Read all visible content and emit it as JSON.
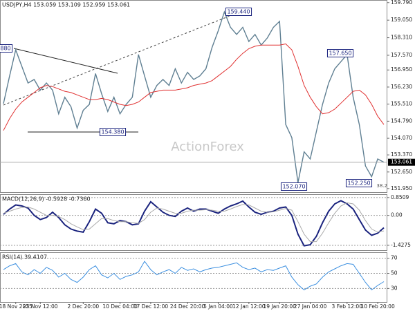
{
  "chart_data": [
    {
      "type": "line",
      "title": "USDJPY,H4 153.059 153.109 152.959 153.061",
      "watermark": "ActionForex",
      "series": [
        {
          "color": "#5f7f92",
          "values": [
            155.53,
            156.7,
            157.8,
            157.1,
            156.4,
            156.55,
            156.1,
            156.4,
            156.1,
            155.1,
            155.8,
            155.4,
            154.5,
            155.25,
            155.5,
            156.8,
            155.95,
            155.2,
            155.8,
            155.1,
            155.5,
            155.8,
            157.6,
            156.7,
            155.8,
            156.3,
            156.55,
            156.3,
            157.0,
            156.4,
            156.85,
            156.55,
            156.7,
            157.0,
            157.9,
            158.6,
            159.4,
            158.75,
            158.45,
            158.75,
            158.15,
            158.45,
            158.0,
            158.3,
            158.75,
            159.0,
            154.65,
            154.1,
            152.2,
            153.5,
            153.2,
            154.35,
            155.5,
            156.4,
            157.0,
            157.3,
            157.6,
            155.8,
            154.65,
            152.9,
            152.45,
            153.2,
            153.06
          ]
        },
        {
          "color": "#e03030",
          "values": [
            154.4,
            154.9,
            155.3,
            155.6,
            155.8,
            156.0,
            156.2,
            156.3,
            156.25,
            156.15,
            156.05,
            156.0,
            155.9,
            155.8,
            155.7,
            155.7,
            155.75,
            155.7,
            155.6,
            155.5,
            155.45,
            155.5,
            155.6,
            155.8,
            156.0,
            156.05,
            156.1,
            156.1,
            156.1,
            156.15,
            156.2,
            156.3,
            156.35,
            156.4,
            156.5,
            156.7,
            156.9,
            157.1,
            157.4,
            157.65,
            157.85,
            157.95,
            158.0,
            158.0,
            158.0,
            158.0,
            158.05,
            157.8,
            157.1,
            156.3,
            155.8,
            155.4,
            155.1,
            155.15,
            155.3,
            155.55,
            155.8,
            156.05,
            156.1,
            155.9,
            155.5,
            155.0,
            154.65
          ]
        }
      ],
      "ylim": [
        151.8,
        159.9
      ],
      "yticks": [
        {
          "value": 159.79,
          "label": "159.790"
        },
        {
          "value": 159.05,
          "label": "159.050"
        },
        {
          "value": 158.31,
          "label": "158.310"
        },
        {
          "value": 157.57,
          "label": "157.570"
        },
        {
          "value": 156.95,
          "label": "156.950"
        },
        {
          "value": 156.23,
          "label": "156.230"
        },
        {
          "value": 155.51,
          "label": "155.510"
        },
        {
          "value": 154.79,
          "label": "154.790"
        },
        {
          "value": 154.07,
          "label": "154.070"
        },
        {
          "value": 153.37,
          "label": "153.370"
        },
        {
          "value": 152.65,
          "label": "152.650"
        },
        {
          "value": 151.95,
          "label": "151.950"
        }
      ],
      "last_price": 153.061,
      "annotations": [
        "159.440",
        "157.650",
        "154.380",
        "152.070",
        "152.250",
        "880",
        "38.2"
      ]
    },
    {
      "type": "line",
      "title": "MACD(12,26,9) -0.5928 -0.7360",
      "series": [
        {
          "color": "#1a237e",
          "values": [
            0.05,
            0.3,
            0.5,
            0.45,
            0.35,
            0.0,
            -0.2,
            -0.1,
            0.15,
            -0.1,
            -0.45,
            -0.65,
            -0.75,
            -0.8,
            -0.3,
            0.3,
            0.1,
            -0.35,
            -0.4,
            -0.25,
            -0.3,
            -0.45,
            -0.4,
            0.2,
            0.65,
            0.4,
            0.15,
            0.0,
            -0.05,
            0.2,
            0.35,
            0.2,
            0.3,
            0.3,
            0.2,
            0.1,
            0.3,
            0.45,
            0.55,
            0.68,
            0.4,
            0.15,
            0.05,
            0.15,
            0.2,
            0.35,
            0.4,
            0.0,
            -0.9,
            -1.45,
            -1.4,
            -1.0,
            -0.35,
            0.2,
            0.55,
            0.7,
            0.55,
            0.3,
            -0.2,
            -0.7,
            -0.95,
            -0.85,
            -0.59
          ]
        },
        {
          "color": "#aaaaaa",
          "values": [
            0.1,
            0.2,
            0.3,
            0.38,
            0.4,
            0.3,
            0.15,
            0.0,
            0.0,
            -0.05,
            -0.2,
            -0.4,
            -0.55,
            -0.68,
            -0.65,
            -0.4,
            -0.15,
            -0.15,
            -0.25,
            -0.3,
            -0.3,
            -0.35,
            -0.38,
            -0.2,
            0.15,
            0.35,
            0.3,
            0.2,
            0.1,
            0.1,
            0.2,
            0.25,
            0.25,
            0.27,
            0.25,
            0.2,
            0.2,
            0.3,
            0.42,
            0.52,
            0.5,
            0.35,
            0.2,
            0.15,
            0.17,
            0.25,
            0.33,
            0.25,
            -0.3,
            -0.9,
            -1.25,
            -1.25,
            -0.85,
            -0.35,
            0.1,
            0.45,
            0.6,
            0.55,
            0.25,
            -0.25,
            -0.65,
            -0.8,
            -0.74
          ]
        }
      ],
      "ylim": [
        -1.66,
        1.01
      ],
      "yticks": [
        0.8509,
        {
          "value": 0,
          "label": "0.00"
        },
        -1.4275
      ],
      "grid": true
    },
    {
      "type": "line",
      "title": "RSI(14) 39.4107",
      "categories": [
        null,
        null,
        "18 Nov 2025",
        null,
        null,
        null,
        "25 Nov 12:00",
        null,
        null,
        null,
        null,
        null,
        null,
        "2 Dec 20:00",
        null,
        null,
        null,
        null,
        null,
        "10 Dec 04:00",
        null,
        null,
        null,
        null,
        "17 Dec 12:00",
        null,
        null,
        null,
        null,
        null,
        "24 Dec 20:00",
        null,
        null,
        null,
        null,
        "5 Jan 04:00",
        null,
        null,
        null,
        null,
        "12 Jan 12:00",
        null,
        null,
        null,
        null,
        "19 Jan 20:00",
        null,
        null,
        null,
        null,
        "27 Jan 04:00",
        null,
        null,
        null,
        null,
        null,
        "3 Feb 12:00",
        null,
        null,
        null,
        null,
        "10 Feb 20:00",
        null
      ],
      "series": [
        {
          "color": "#3b8fe0",
          "values": [
            55,
            60,
            63,
            52,
            48,
            55,
            50,
            58,
            54,
            45,
            50,
            42,
            38,
            45,
            55,
            60,
            48,
            44,
            50,
            42,
            46,
            48,
            52,
            66,
            55,
            48,
            52,
            55,
            50,
            58,
            54,
            56,
            52,
            55,
            57,
            58,
            60,
            62,
            64,
            58,
            55,
            57,
            52,
            55,
            54,
            57,
            60,
            45,
            35,
            28,
            33,
            36,
            45,
            52,
            56,
            60,
            63,
            62,
            50,
            38,
            28,
            34,
            39
          ]
        }
      ],
      "ylim": [
        12,
        78
      ],
      "yticks": [
        70,
        50,
        30
      ],
      "grid": true
    }
  ]
}
